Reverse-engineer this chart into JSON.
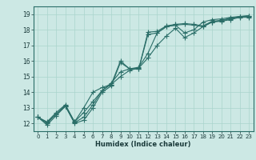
{
  "title": "",
  "xlabel": "Humidex (Indice chaleur)",
  "ylabel": "",
  "background_color": "#cce8e4",
  "grid_color": "#aad4cc",
  "line_color": "#2a6e68",
  "xlim": [
    -0.5,
    23.5
  ],
  "ylim": [
    11.5,
    19.5
  ],
  "xticks": [
    0,
    1,
    2,
    3,
    4,
    5,
    6,
    7,
    8,
    9,
    10,
    11,
    12,
    13,
    14,
    15,
    16,
    17,
    18,
    19,
    20,
    21,
    22,
    23
  ],
  "yticks": [
    12,
    13,
    14,
    15,
    16,
    17,
    18,
    19
  ],
  "series": [
    [
      12.4,
      11.9,
      12.5,
      13.1,
      12.0,
      12.2,
      13.0,
      14.0,
      14.4,
      15.9,
      15.5,
      15.5,
      17.7,
      17.8,
      18.2,
      18.3,
      18.35,
      18.3,
      18.2,
      18.5,
      18.55,
      18.65,
      18.8,
      18.8
    ],
    [
      12.4,
      12.0,
      12.6,
      13.1,
      12.1,
      12.7,
      13.4,
      14.1,
      14.6,
      15.3,
      15.5,
      15.6,
      16.5,
      17.8,
      18.2,
      18.3,
      17.8,
      18.0,
      18.5,
      18.65,
      18.7,
      18.8,
      18.85,
      18.9
    ],
    [
      12.4,
      12.1,
      12.7,
      13.2,
      12.1,
      13.0,
      14.0,
      14.3,
      14.5,
      16.0,
      15.5,
      15.5,
      17.85,
      17.9,
      18.25,
      18.35,
      18.4,
      18.35,
      18.25,
      18.55,
      18.6,
      18.7,
      18.85,
      18.85
    ],
    [
      12.4,
      12.05,
      12.6,
      13.15,
      12.05,
      12.4,
      13.2,
      14.1,
      14.5,
      15.0,
      15.4,
      15.55,
      16.2,
      17.0,
      17.6,
      18.1,
      17.5,
      17.8,
      18.2,
      18.5,
      18.6,
      18.75,
      18.85,
      18.9
    ]
  ],
  "marker": "+",
  "markersize": 4,
  "linewidth": 0.8,
  "figwidth": 3.2,
  "figheight": 2.0,
  "dpi": 100
}
